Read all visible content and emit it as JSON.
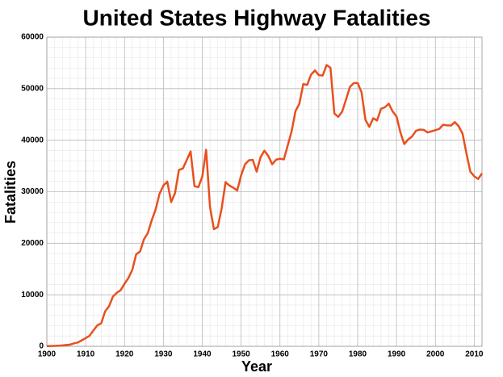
{
  "chart_data": {
    "type": "line",
    "title": "United States Highway Fatalities",
    "x_label": "Year",
    "y_label": "Fatalities",
    "x": [
      1900,
      1901,
      1902,
      1903,
      1904,
      1905,
      1906,
      1907,
      1908,
      1909,
      1910,
      1911,
      1912,
      1913,
      1914,
      1915,
      1916,
      1917,
      1918,
      1919,
      1920,
      1921,
      1922,
      1923,
      1924,
      1925,
      1926,
      1927,
      1928,
      1929,
      1930,
      1931,
      1932,
      1933,
      1934,
      1935,
      1936,
      1937,
      1938,
      1939,
      1940,
      1941,
      1942,
      1943,
      1944,
      1945,
      1946,
      1947,
      1948,
      1949,
      1950,
      1951,
      1952,
      1953,
      1954,
      1955,
      1956,
      1957,
      1958,
      1959,
      1960,
      1961,
      1962,
      1963,
      1964,
      1965,
      1966,
      1967,
      1968,
      1969,
      1970,
      1971,
      1972,
      1973,
      1974,
      1975,
      1976,
      1977,
      1978,
      1979,
      1980,
      1981,
      1982,
      1983,
      1984,
      1985,
      1986,
      1987,
      1988,
      1989,
      1990,
      1991,
      1992,
      1993,
      1994,
      1995,
      1996,
      1997,
      1998,
      1999,
      2000,
      2001,
      2002,
      2003,
      2004,
      2005,
      2006,
      2007,
      2008,
      2009,
      2010,
      2011,
      2012
    ],
    "series": [
      {
        "name": "Fatalities",
        "color": "#e8501e",
        "values": [
          36,
          54,
          79,
          117,
          172,
          252,
          338,
          581,
          751,
          1174,
          1599,
          2043,
          3100,
          4076,
          4468,
          6779,
          7766,
          9630,
          10390,
          10896,
          12155,
          13253,
          14859,
          17870,
          18400,
          20771,
          21990,
          24470,
          26557,
          29592,
          31204,
          31963,
          27979,
          29746,
          34240,
          34494,
          36126,
          37819,
          31083,
          30895,
          32914,
          38142,
          27007,
          22727,
          23165,
          26785,
          31874,
          31193,
          30775,
          30246,
          33186,
          35309,
          36088,
          36190,
          33890,
          36688,
          37965,
          36932,
          35331,
          36223,
          36399,
          36285,
          38980,
          41723,
          45645,
          47089,
          50894,
          50724,
          52725,
          53543,
          52627,
          52542,
          54589,
          54052,
          45196,
          44525,
          45523,
          47878,
          50331,
          51093,
          51091,
          49301,
          43945,
          42589,
          44257,
          43825,
          46087,
          46390,
          47087,
          45582,
          44599,
          41508,
          39250,
          40150,
          40716,
          41817,
          42065,
          42013,
          41501,
          41717,
          41945,
          42196,
          43005,
          42884,
          42836,
          43510,
          42708,
          41259,
          37423,
          33883,
          32999,
          32479,
          33561
        ]
      }
    ],
    "xlim": [
      1900,
      2012
    ],
    "ylim": [
      0,
      60000
    ],
    "xticks": [
      1900,
      1910,
      1920,
      1930,
      1940,
      1950,
      1960,
      1970,
      1980,
      1990,
      2000,
      2010
    ],
    "yticks": [
      0,
      10000,
      20000,
      30000,
      40000,
      50000,
      60000
    ],
    "grid": true
  }
}
